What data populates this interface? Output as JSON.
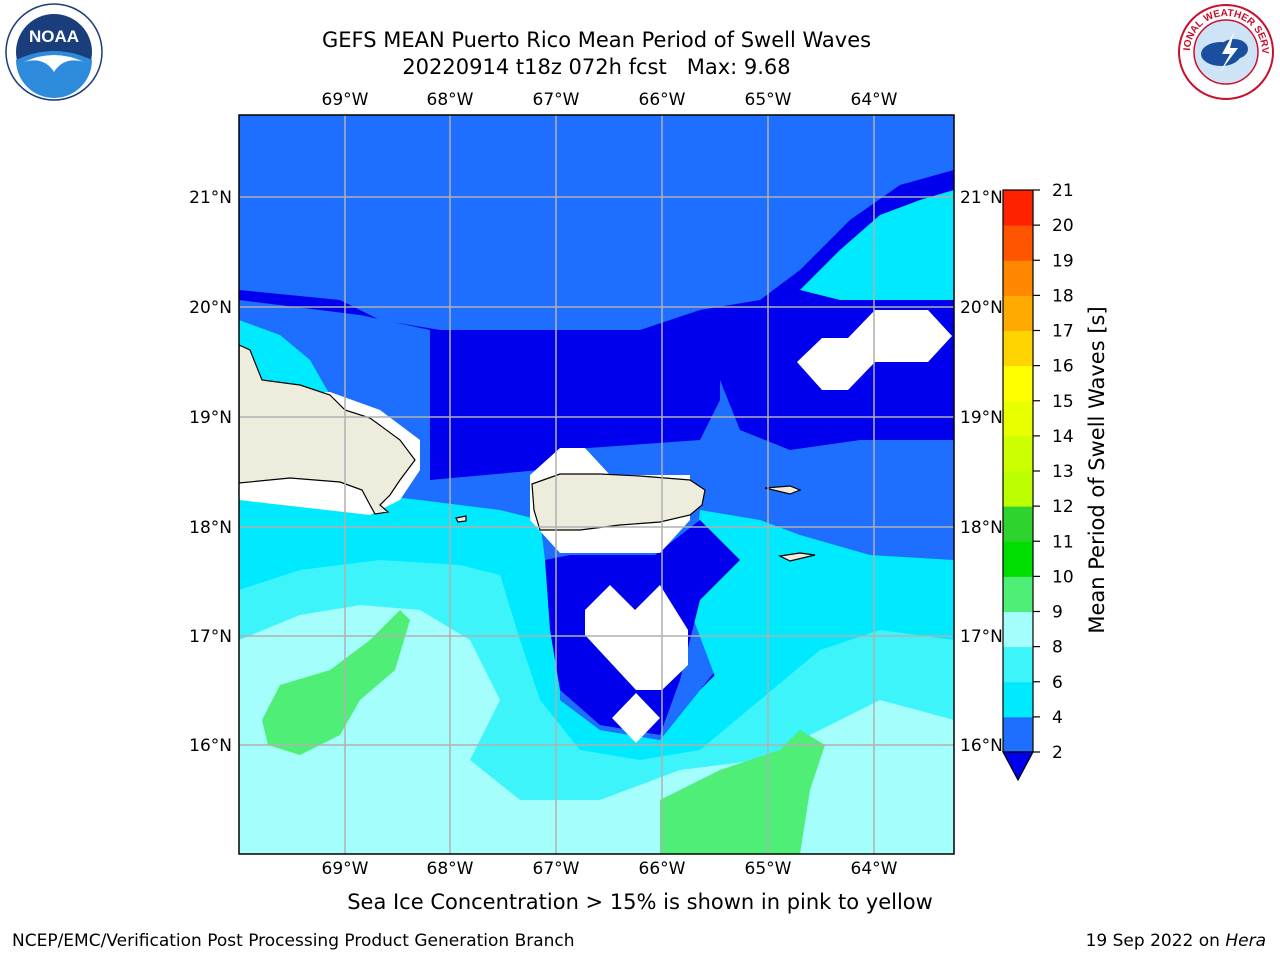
{
  "title": {
    "line1": "GEFS MEAN Puerto Rico Mean Period of Swell Waves",
    "line2": "20220914 t18z 072h fcst   Max: 9.68"
  },
  "map": {
    "lon_labels": [
      "69°W",
      "68°W",
      "67°W",
      "66°W",
      "65°W",
      "64°W"
    ],
    "lat_labels": [
      "21°N",
      "20°N",
      "19°N",
      "18°N",
      "17°N",
      "16°N"
    ],
    "colors": {
      "c2_4": "#1e6eff",
      "c_under": "#0000ef",
      "c4_6": "#00eaff",
      "c6_8": "#3ef4fb",
      "c8_9": "#a4fffc",
      "c9_10": "#4fee77",
      "land": "#eeecdc",
      "nodata": "#ffffff",
      "grid": "#b0b0b0"
    }
  },
  "colorbar": {
    "title": "Mean Period of Swell Waves [s]",
    "levels": [
      "2",
      "4",
      "6",
      "8",
      "9",
      "10",
      "11",
      "12",
      "13",
      "14",
      "15",
      "16",
      "17",
      "18",
      "19",
      "20",
      "21"
    ],
    "colors": [
      "#1e6eff",
      "#00eaff",
      "#3ef4fb",
      "#a4fffc",
      "#4fee77",
      "#00dd00",
      "#2ed32e",
      "#bbff00",
      "#ccff00",
      "#e8ff00",
      "#ffff00",
      "#ffd400",
      "#ffaa00",
      "#ff8800",
      "#ff5500",
      "#ff2200"
    ],
    "under_color": "#0000ef"
  },
  "caption": "Sea Ice Concentration > 15% is shown in pink to yellow",
  "footer": {
    "left": "NCEP/EMC/Verification Post Processing Product Generation Branch",
    "date": "19 Sep 2022 on ",
    "machine": "Hera"
  },
  "logos": {
    "noaa": "NOAA",
    "nws": "NATIONAL WEATHER SERVICE"
  }
}
